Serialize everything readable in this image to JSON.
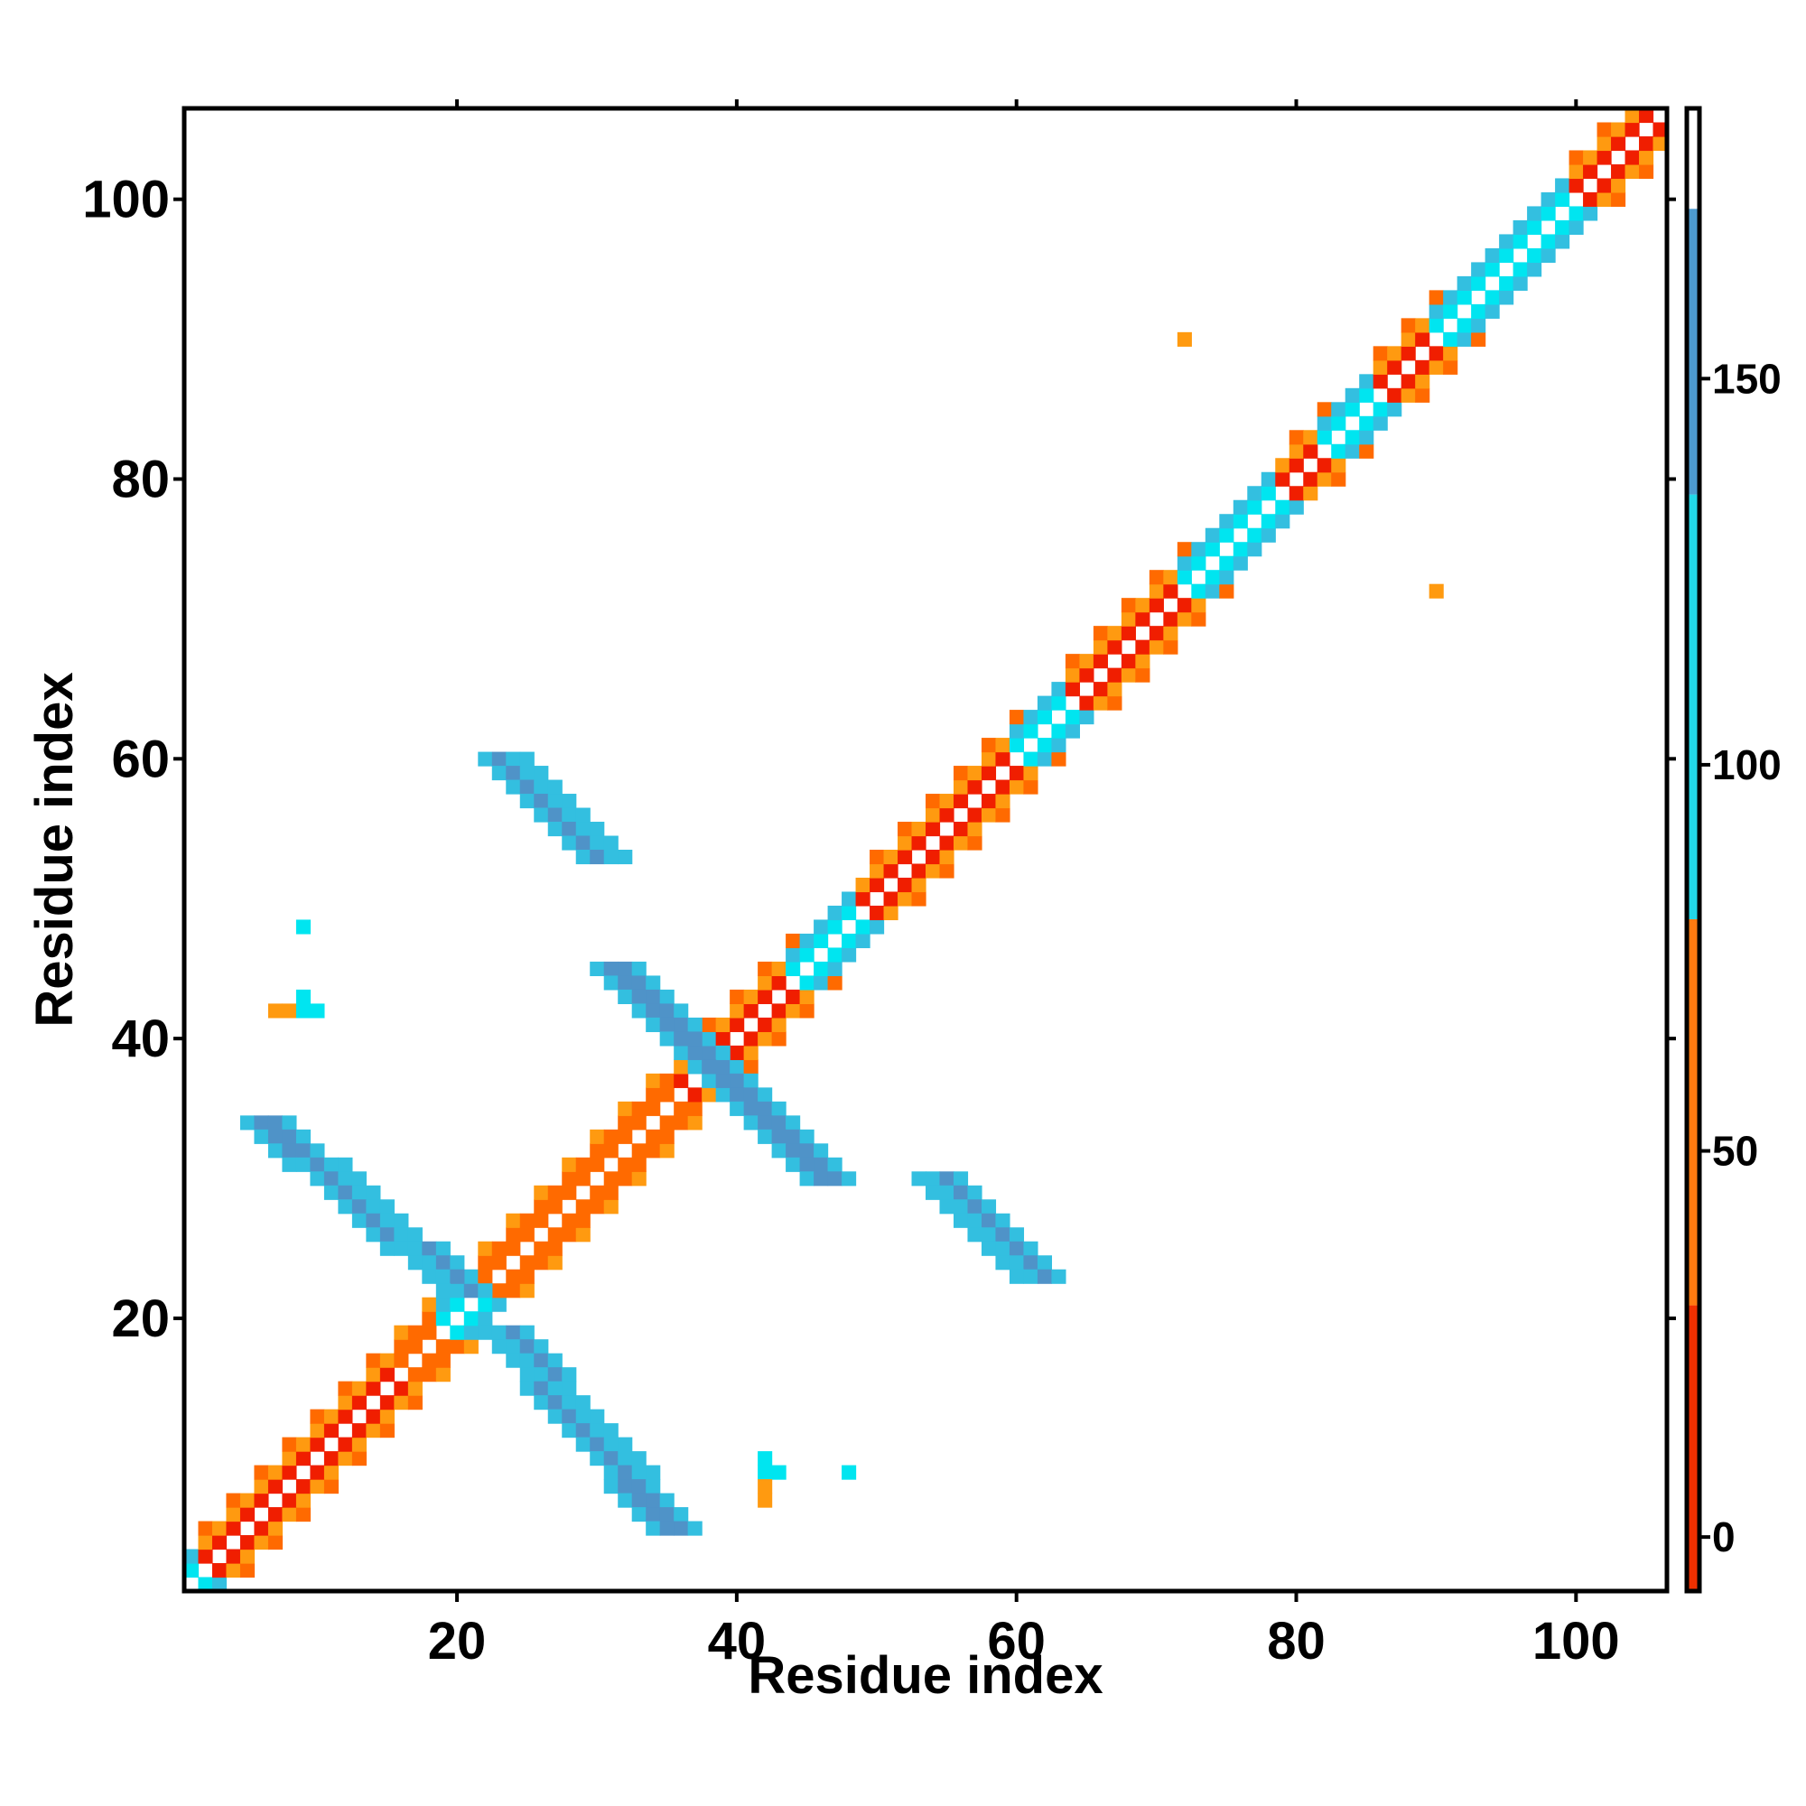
{
  "chart_data": {
    "type": "heatmap",
    "xlabel": "Residue index",
    "ylabel": "Residue index",
    "x_range": [
      1,
      106
    ],
    "y_range": [
      1,
      106
    ],
    "x_ticks": [
      20,
      40,
      60,
      80,
      100
    ],
    "y_ticks": [
      20,
      40,
      60,
      80,
      100
    ],
    "grid": false,
    "legend": "colorbar-right",
    "colorbar": {
      "range": [
        -7,
        185
      ],
      "ticks": [
        0,
        50,
        100,
        150
      ],
      "bands": [
        {
          "from": -7,
          "to": 30,
          "color": "#f03000"
        },
        {
          "from": 30,
          "to": 80,
          "color": "#ff7a10"
        },
        {
          "from": 80,
          "to": 135,
          "color": "#22d8e8"
        },
        {
          "from": 135,
          "to": 172,
          "color": "#4d9bd0"
        },
        {
          "from": 172,
          "to": 185,
          "color": "#ffffff"
        }
      ]
    },
    "palette": {
      "R": "#f01e00",
      "O": "#ff6a00",
      "Y": "#ff9a10",
      "C": "#00e5f0",
      "L": "#33bfe0",
      "B": "#4f93c8"
    },
    "diagonal_bands": [
      {
        "from": 1,
        "to": 2,
        "value": 100
      },
      {
        "from": 2,
        "to": 16,
        "value": 45
      },
      {
        "from": 16,
        "to": 19,
        "value": 20
      },
      {
        "from": 19,
        "to": 22,
        "value": 95
      },
      {
        "from": 22,
        "to": 36,
        "value": 20
      },
      {
        "from": 36,
        "to": 38,
        "value": 60
      },
      {
        "from": 38,
        "to": 44,
        "value": 30
      },
      {
        "from": 44,
        "to": 49,
        "value": 95
      },
      {
        "from": 49,
        "to": 60,
        "value": 45
      },
      {
        "from": 60,
        "to": 64,
        "value": 95
      },
      {
        "from": 64,
        "to": 72,
        "value": 40
      },
      {
        "from": 72,
        "to": 79,
        "value": 95
      },
      {
        "from": 79,
        "to": 82,
        "value": 40
      },
      {
        "from": 82,
        "to": 86,
        "value": 95
      },
      {
        "from": 86,
        "to": 90,
        "value": 45
      },
      {
        "from": 90,
        "to": 100,
        "value": 95
      },
      {
        "from": 100,
        "to": 106,
        "value": 55
      }
    ],
    "strands": [
      {
        "x_start": 5,
        "y_start": 34,
        "x_end": 19,
        "y_end": 22,
        "width": 4,
        "value": 150
      },
      {
        "x_start": 22,
        "y_start": 19,
        "x_end": 34,
        "y_end": 5,
        "width": 4,
        "value": 150
      },
      {
        "x_start": 30,
        "y_start": 45,
        "x_end": 37,
        "y_end": 38,
        "width": 4,
        "value": 140
      },
      {
        "x_start": 37,
        "y_start": 38,
        "x_end": 45,
        "y_end": 30,
        "width": 4,
        "value": 140
      },
      {
        "x_start": 22,
        "y_start": 60,
        "x_end": 29,
        "y_end": 53,
        "width": 4,
        "value": 160
      },
      {
        "x_start": 53,
        "y_start": 30,
        "x_end": 60,
        "y_end": 23,
        "width": 4,
        "value": 160
      }
    ],
    "isolated_cells": [
      {
        "x": 9,
        "y": 48,
        "value": 100
      },
      {
        "x": 9,
        "y": 43,
        "value": 100
      },
      {
        "x": 7,
        "y": 42,
        "value": 60
      },
      {
        "x": 8,
        "y": 42,
        "value": 60
      },
      {
        "x": 9,
        "y": 42,
        "value": 100
      },
      {
        "x": 10,
        "y": 42,
        "value": 100
      },
      {
        "x": 42,
        "y": 10,
        "value": 100
      },
      {
        "x": 42,
        "y": 9,
        "value": 100
      },
      {
        "x": 43,
        "y": 9,
        "value": 100
      },
      {
        "x": 42,
        "y": 8,
        "value": 60
      },
      {
        "x": 42,
        "y": 7,
        "value": 60
      },
      {
        "x": 48,
        "y": 9,
        "value": 100
      },
      {
        "x": 72,
        "y": 90,
        "value": 45
      },
      {
        "x": 90,
        "y": 72,
        "value": 45
      }
    ]
  }
}
